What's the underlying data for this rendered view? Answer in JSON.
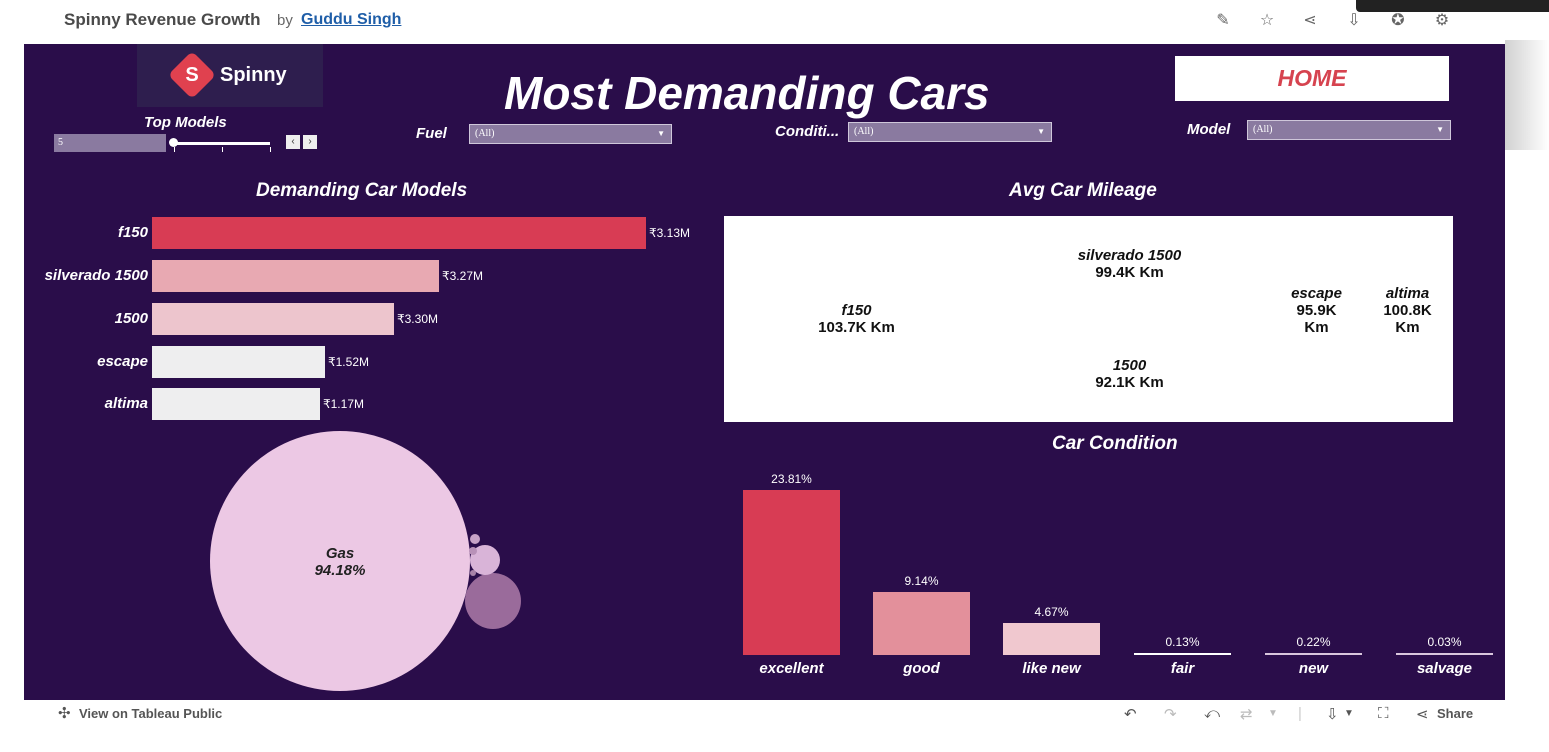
{
  "header": {
    "title": "Spinny Revenue Growth",
    "by": "by",
    "author": "Guddu Singh"
  },
  "toolbar_icons": [
    "edit-icon",
    "star-icon",
    "share-nodes-icon",
    "download-icon",
    "badge-icon",
    "gear-icon"
  ],
  "dashboard": {
    "logo_text": "Spinny",
    "logo_letter": "S",
    "title": "Most Demanding Cars",
    "home_button": "HOME",
    "top_models_label": "Top Models",
    "top_models_value": "5",
    "filters": {
      "fuel_label": "Fuel",
      "fuel_value": "(All)",
      "condition_label": "Conditi...",
      "condition_value": "(All)",
      "model_label": "Model",
      "model_value": "(All)"
    }
  },
  "chart_data": [
    {
      "type": "bar",
      "title": "Demanding Car Models",
      "categories": [
        "f150",
        "silverado 1500",
        "1500",
        "escape",
        "altima"
      ],
      "values_label": [
        "₹3.13M",
        "₹3.27M",
        "₹3.30M",
        "₹1.52M",
        "₹1.17M"
      ],
      "relative_lengths": [
        1.0,
        0.58,
        0.49,
        0.35,
        0.34
      ],
      "colors": [
        "#d83c54",
        "#e8a9b2",
        "#edc5cd",
        "#eeeeef",
        "#eeeeef"
      ]
    },
    {
      "type": "heatmap",
      "title": "Avg Car Mileage",
      "cells": [
        {
          "name": "f150",
          "value": "103.7K Km",
          "color": "#f27066"
        },
        {
          "name": "silverado 1500",
          "value": "99.4K Km",
          "color": "#f1c1c1"
        },
        {
          "name": "1500",
          "value": "92.1K Km",
          "color": "#f2cfcd"
        },
        {
          "name": "escape",
          "value": "95.9K Km",
          "color": "#efedef"
        },
        {
          "name": "altima",
          "value": "100.8K Km",
          "color": "#efedef"
        }
      ]
    },
    {
      "type": "bar",
      "title": "Car Condition",
      "categories": [
        "excellent",
        "good",
        "like new",
        "fair",
        "new",
        "salvage"
      ],
      "values": [
        23.81,
        9.14,
        4.67,
        0.13,
        0.22,
        0.03
      ],
      "values_label": [
        "23.81%",
        "9.14%",
        "4.67%",
        "0.13%",
        "0.22%",
        "0.03%"
      ],
      "colors": [
        "#d83c54",
        "#e3909b",
        "#f0c8cf",
        "#ffffff",
        "#d9c6dd",
        "#d9c6dd"
      ]
    },
    {
      "type": "scatter",
      "subtype": "packed-bubbles",
      "bubbles": [
        {
          "name": "Gas",
          "value_label": "94.18%",
          "share": 94.18,
          "color": "#ecc8e4"
        },
        {
          "name": "",
          "share": 4.0,
          "color": "#9a6b9b"
        },
        {
          "name": "",
          "share": 1.0,
          "color": "#d9b4d8"
        },
        {
          "name": "",
          "share": 0.4,
          "color": "#c7a2c7"
        },
        {
          "name": "",
          "share": 0.3,
          "color": "#b891b8"
        },
        {
          "name": "",
          "share": 0.1,
          "color": "#a882a8"
        }
      ]
    }
  ],
  "footer": {
    "view_label": "View on Tableau Public",
    "share_label": "Share"
  }
}
